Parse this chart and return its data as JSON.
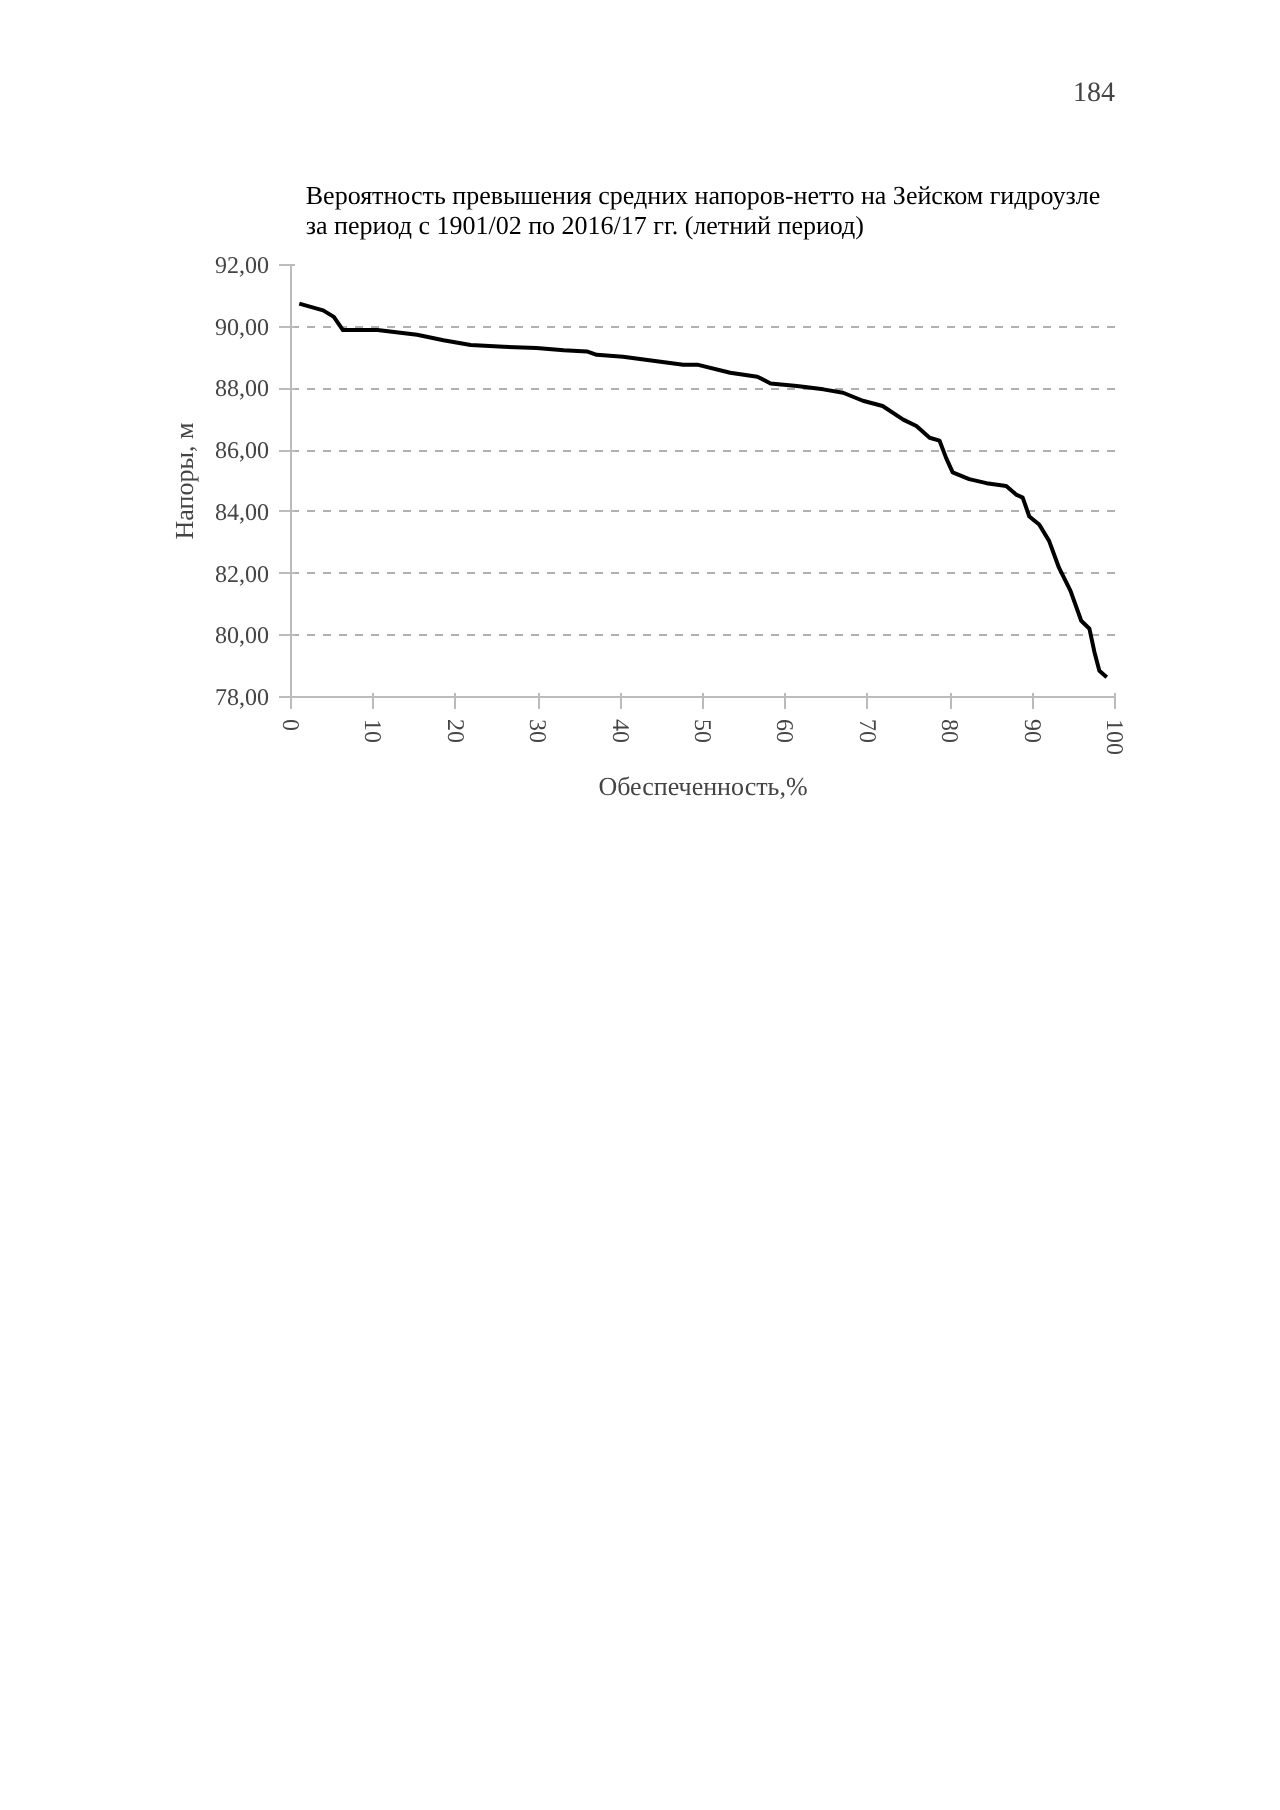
{
  "chart_data": {
    "type": "line",
    "title": "Вероятность превышения средних напоров-нетто на Зейском гидроузле\nза период с 1901/02 по 2016/17 гг. (летний период)",
    "xlabel": "Обеспеченность,%",
    "ylabel": "Напоры, м",
    "annotations": [
      "184"
    ],
    "series": [
      {
        "color": "#000000",
        "x": [
          1.0,
          3.9,
          5.2,
          6.3,
          10.5,
          15.3,
          18.5,
          21.8,
          25.8,
          29.8,
          33.1,
          35.9,
          37.1,
          40.3,
          44.4,
          47.6,
          49.3,
          53.3,
          56.6,
          58.2,
          61.4,
          64.6,
          67.0,
          69.4,
          71.8,
          74.3,
          75.9,
          77.5,
          78.7,
          79.5,
          80.3,
          82.3,
          84.4,
          86.8,
          88.0,
          88.8,
          89.6,
          90.8,
          92.0,
          93.2,
          94.6,
          95.9,
          96.9,
          97.5,
          98.1,
          99.0
        ],
        "values": [
          90.75,
          90.53,
          90.32,
          89.89,
          89.89,
          89.74,
          89.56,
          89.41,
          89.35,
          89.31,
          89.24,
          89.2,
          89.09,
          89.03,
          88.88,
          88.77,
          88.77,
          88.51,
          88.38,
          88.16,
          88.08,
          87.97,
          87.86,
          87.6,
          87.43,
          86.99,
          86.78,
          86.4,
          86.31,
          85.75,
          85.28,
          85.06,
          84.93,
          84.84,
          84.56,
          84.46,
          83.85,
          83.59,
          83.06,
          82.19,
          81.44,
          80.47,
          80.21,
          79.46,
          78.85,
          78.64
        ]
      }
    ],
    "xlim": [
      0,
      100
    ],
    "xticks": [
      0,
      10,
      20,
      30,
      40,
      50,
      60,
      70,
      80,
      90,
      100
    ],
    "ylim": [
      78,
      92
    ],
    "yticks": [
      {
        "value": 78,
        "label": "78,00"
      },
      {
        "value": 80,
        "label": "80,00"
      },
      {
        "value": 82,
        "label": "82,00"
      },
      {
        "value": 84,
        "label": "84,00"
      },
      {
        "value": 86,
        "label": "86,00"
      },
      {
        "value": 88,
        "label": "88,00"
      },
      {
        "value": 90,
        "label": "90,00"
      },
      {
        "value": 92,
        "label": "92,00"
      }
    ],
    "grid": "y",
    "line_style": "solid",
    "marker": "none"
  }
}
